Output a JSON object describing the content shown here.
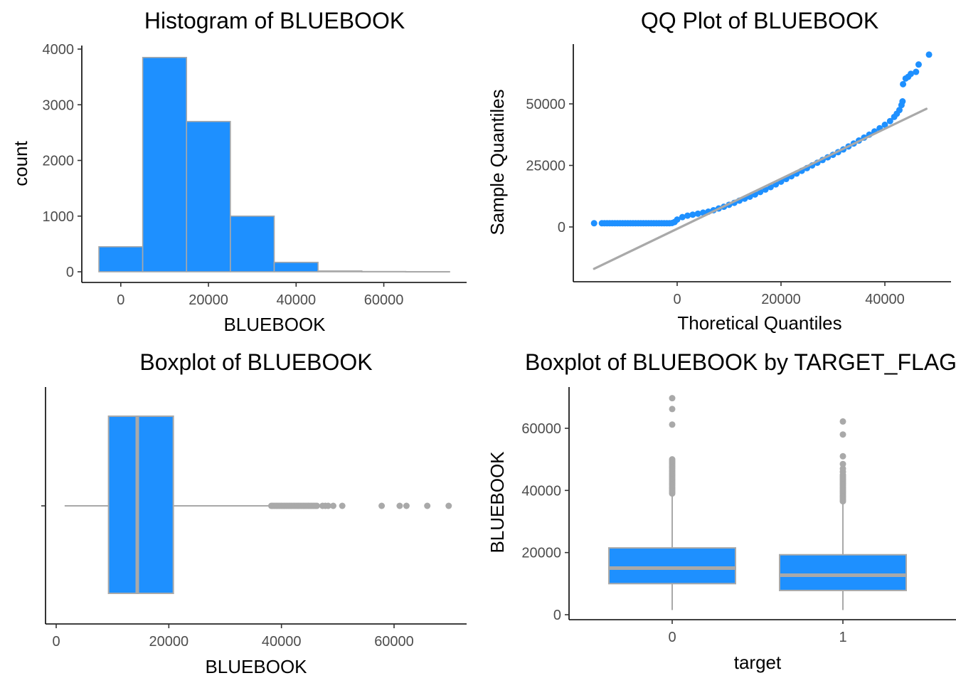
{
  "chart_data": [
    {
      "type": "bar",
      "title": "Histogram of BLUEBOOK",
      "xlabel": "BLUEBOOK",
      "ylabel": "count",
      "xlim": [
        -5000,
        75000
      ],
      "ylim": [
        0,
        4000
      ],
      "x_ticks": [
        0,
        20000,
        40000,
        60000
      ],
      "y_ticks": [
        0,
        1000,
        2000,
        3000,
        4000
      ],
      "bins": [
        {
          "x0": -5000,
          "x1": 5000,
          "count": 450
        },
        {
          "x0": 5000,
          "x1": 15000,
          "count": 3850
        },
        {
          "x0": 15000,
          "x1": 25000,
          "count": 2700
        },
        {
          "x0": 25000,
          "x1": 35000,
          "count": 1000
        },
        {
          "x0": 35000,
          "x1": 45000,
          "count": 170
        },
        {
          "x0": 45000,
          "x1": 55000,
          "count": 15
        },
        {
          "x0": 55000,
          "x1": 65000,
          "count": 5
        },
        {
          "x0": 65000,
          "x1": 75000,
          "count": 3
        }
      ],
      "fill_color": "#1E90FF",
      "edge_color": "#A9A9A9"
    },
    {
      "type": "scatter",
      "title": "QQ Plot of BLUEBOOK",
      "xlabel": "Thoretical Quantiles",
      "ylabel": "Sample Quantiles",
      "xlim": [
        -17000,
        48000
      ],
      "ylim": [
        -17000,
        71000
      ],
      "x_ticks": [
        0,
        20000,
        40000
      ],
      "y_ticks": [
        0,
        25000,
        50000
      ],
      "reference_line": [
        [
          -16000,
          -17000
        ],
        [
          48000,
          48000
        ]
      ],
      "points": [
        [
          -16000,
          1500
        ],
        [
          -14500,
          1500
        ],
        [
          -14000,
          1500
        ],
        [
          -13500,
          1500
        ],
        [
          -13000,
          1500
        ],
        [
          -12500,
          1500
        ],
        [
          -12000,
          1500
        ],
        [
          -11500,
          1500
        ],
        [
          -11000,
          1500
        ],
        [
          -10500,
          1500
        ],
        [
          -10000,
          1500
        ],
        [
          -9500,
          1500
        ],
        [
          -9000,
          1500
        ],
        [
          -8500,
          1500
        ],
        [
          -8000,
          1500
        ],
        [
          -7500,
          1500
        ],
        [
          -7000,
          1500
        ],
        [
          -6500,
          1500
        ],
        [
          -6000,
          1500
        ],
        [
          -5500,
          1500
        ],
        [
          -5000,
          1500
        ],
        [
          -4500,
          1500
        ],
        [
          -4000,
          1500
        ],
        [
          -3500,
          1500
        ],
        [
          -3000,
          1500
        ],
        [
          -2500,
          1500
        ],
        [
          -2000,
          1500
        ],
        [
          -1500,
          1500
        ],
        [
          -1000,
          1600
        ],
        [
          -500,
          2000
        ],
        [
          0,
          3000
        ],
        [
          1000,
          4000
        ],
        [
          2000,
          4600
        ],
        [
          3000,
          5000
        ],
        [
          4000,
          5400
        ],
        [
          5000,
          5800
        ],
        [
          6000,
          6200
        ],
        [
          7000,
          6800
        ],
        [
          8000,
          7500
        ],
        [
          9000,
          8200
        ],
        [
          10000,
          9000
        ],
        [
          11000,
          9800
        ],
        [
          12000,
          10700
        ],
        [
          13000,
          11500
        ],
        [
          14000,
          12300
        ],
        [
          15000,
          13200
        ],
        [
          16000,
          14200
        ],
        [
          17000,
          15200
        ],
        [
          18000,
          16200
        ],
        [
          19000,
          17300
        ],
        [
          20000,
          18400
        ],
        [
          21000,
          19500
        ],
        [
          22000,
          20600
        ],
        [
          23000,
          21700
        ],
        [
          24000,
          22800
        ],
        [
          25000,
          23900
        ],
        [
          26000,
          25000
        ],
        [
          27000,
          26100
        ],
        [
          28000,
          27200
        ],
        [
          29000,
          28300
        ],
        [
          30000,
          29300
        ],
        [
          31000,
          30400
        ],
        [
          32000,
          31500
        ],
        [
          33000,
          32700
        ],
        [
          34000,
          33900
        ],
        [
          35000,
          35100
        ],
        [
          36000,
          36300
        ],
        [
          37000,
          37500
        ],
        [
          38000,
          38800
        ],
        [
          39000,
          40100
        ],
        [
          40000,
          41500
        ],
        [
          41000,
          43000
        ],
        [
          41800,
          44700
        ],
        [
          42300,
          46000
        ],
        [
          42800,
          47500
        ],
        [
          43200,
          49500
        ],
        [
          43400,
          51000
        ],
        [
          43500,
          58000
        ],
        [
          44000,
          60300
        ],
        [
          44500,
          61000
        ],
        [
          45000,
          62200
        ],
        [
          46000,
          63000
        ],
        [
          46500,
          66000
        ],
        [
          48500,
          70000
        ]
      ],
      "point_color": "#1E90FF",
      "line_color": "#A9A9A9"
    },
    {
      "type": "box",
      "title": "Boxplot of BLUEBOOK",
      "xlabel": "BLUEBOOK",
      "xlim": [
        -1500,
        72000
      ],
      "x_ticks": [
        0,
        20000,
        40000,
        60000
      ],
      "box": {
        "min": 1500,
        "q1": 9300,
        "median": 14400,
        "q3": 20800,
        "whisker_high": 38000
      },
      "outliers": [
        38200,
        38500,
        38800,
        39100,
        39400,
        39700,
        40000,
        40300,
        40600,
        40900,
        41200,
        41500,
        41800,
        42100,
        42400,
        42700,
        43000,
        43300,
        43600,
        43900,
        44200,
        44500,
        44800,
        45100,
        45400,
        45700,
        46000,
        46300,
        47300,
        47800,
        48300,
        49200,
        50800,
        57800,
        61000,
        62200,
        65900,
        69700
      ],
      "fill_color": "#1E90FF",
      "line_color": "#A9A9A9"
    },
    {
      "type": "box",
      "title": "Boxplot of BLUEBOOK by TARGET_FLAG",
      "xlabel": "target",
      "ylabel": "BLUEBOOK",
      "ylim": [
        -500,
        71500
      ],
      "y_ticks": [
        0,
        20000,
        40000,
        60000
      ],
      "categories": [
        "0",
        "1"
      ],
      "boxes": [
        {
          "category": "0",
          "min": 1500,
          "q1": 10000,
          "median": 15000,
          "q3": 21500,
          "whisker_high": 38500,
          "outliers": [
            39000,
            39500,
            40000,
            40500,
            41000,
            41500,
            42000,
            42500,
            43000,
            43500,
            44000,
            44500,
            45000,
            45500,
            46000,
            46500,
            47000,
            47500,
            48000,
            48500,
            49000,
            49500,
            50000,
            61200,
            66200,
            69700
          ]
        },
        {
          "category": "1",
          "min": 1500,
          "q1": 7800,
          "median": 12700,
          "q3": 19300,
          "whisker_high": 36000,
          "outliers": [
            36500,
            37000,
            37500,
            38000,
            38500,
            39000,
            39500,
            40000,
            40500,
            41000,
            41500,
            42000,
            42500,
            43000,
            43500,
            44000,
            44500,
            45000,
            46000,
            47000,
            48500,
            51000,
            58000,
            62200
          ]
        }
      ],
      "fill_color": "#1E90FF",
      "line_color": "#A9A9A9"
    }
  ]
}
